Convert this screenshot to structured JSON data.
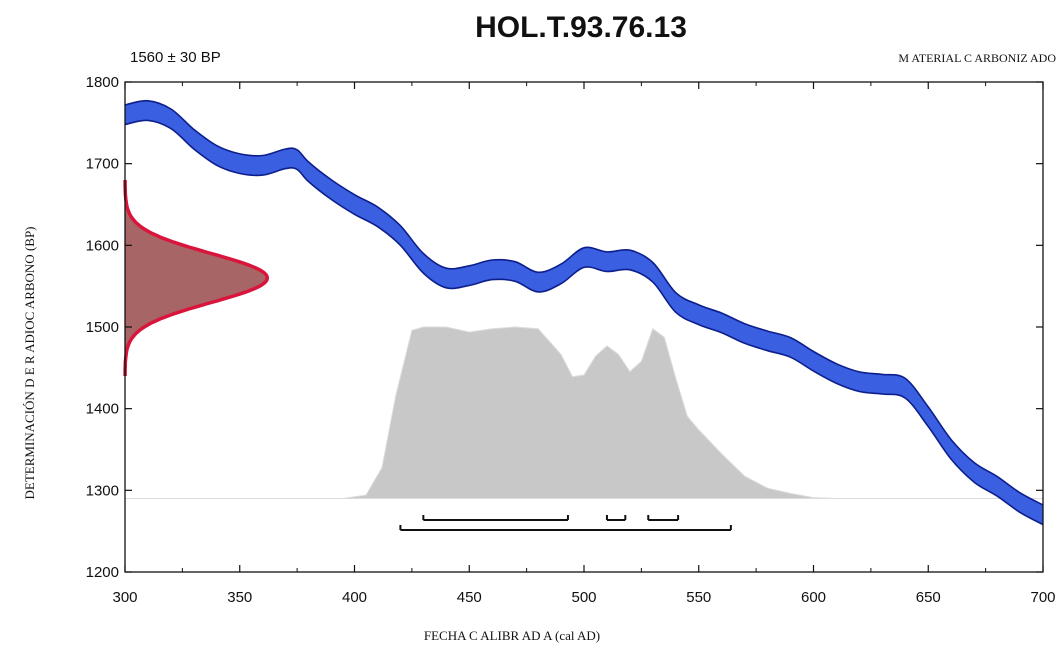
{
  "chart_data": {
    "type": "area",
    "title": "HOL.T.93.76.13",
    "subtitle": "1560 ± 30 BP",
    "annotation_right": "M ATERIAL C ARBONIZ ADO",
    "xlabel": "FECHA C ALIBR AD A (cal AD)",
    "ylabel": "DETERMINACIÓN D E R ADIOC ARBONO (BP)",
    "xlim": [
      300,
      700
    ],
    "ylim": [
      1200,
      1800
    ],
    "x_ticks": [
      300,
      350,
      400,
      450,
      500,
      550,
      600,
      650,
      700
    ],
    "y_ticks": [
      1200,
      1300,
      1400,
      1500,
      1600,
      1700,
      1800
    ],
    "colors": {
      "calibration_fill": "#3a5fe0",
      "calibration_edge": "#0d1f8c",
      "measurement_fill": "#a86565",
      "measurement_edge": "#d9153c",
      "probability_fill": "#c8c8c8",
      "range_bar": "#111111"
    },
    "calibration_curve": {
      "x": [
        300,
        310,
        320,
        330,
        340,
        350,
        360,
        370,
        375,
        380,
        390,
        400,
        410,
        420,
        430,
        440,
        450,
        460,
        470,
        480,
        490,
        500,
        510,
        520,
        530,
        540,
        550,
        560,
        570,
        580,
        590,
        600,
        610,
        620,
        630,
        640,
        650,
        660,
        670,
        680,
        690,
        700
      ],
      "y": [
        1760,
        1765,
        1755,
        1730,
        1710,
        1700,
        1698,
        1706,
        1705,
        1690,
        1668,
        1650,
        1635,
        1612,
        1578,
        1560,
        1563,
        1570,
        1568,
        1555,
        1565,
        1585,
        1580,
        1582,
        1567,
        1530,
        1515,
        1505,
        1492,
        1483,
        1475,
        1458,
        1443,
        1433,
        1430,
        1425,
        1390,
        1350,
        1322,
        1305,
        1285,
        1270
      ],
      "half_width": 12
    },
    "measurement_distribution": {
      "mean": 1560,
      "sigma": 30,
      "peak_x_extent": 62
    },
    "probability_distribution": {
      "x": [
        300,
        395,
        405,
        412,
        418,
        425,
        430,
        440,
        450,
        460,
        470,
        480,
        490,
        495,
        500,
        505,
        510,
        515,
        520,
        525,
        530,
        535,
        540,
        545,
        550,
        560,
        570,
        580,
        590,
        600,
        610,
        700
      ],
      "p": [
        0,
        0,
        0.02,
        0.18,
        0.6,
        0.98,
        1.0,
        1.0,
        0.97,
        0.99,
        1.0,
        0.99,
        0.84,
        0.71,
        0.72,
        0.83,
        0.89,
        0.84,
        0.74,
        0.8,
        0.99,
        0.94,
        0.7,
        0.48,
        0.4,
        0.26,
        0.13,
        0.06,
        0.03,
        0.005,
        0,
        0
      ],
      "baseline_y": 1290,
      "top_y": 1500
    },
    "ranges_1sigma": [
      [
        430,
        493
      ],
      [
        510,
        518
      ],
      [
        528,
        541
      ]
    ],
    "ranges_2sigma": [
      [
        420,
        564
      ]
    ]
  }
}
